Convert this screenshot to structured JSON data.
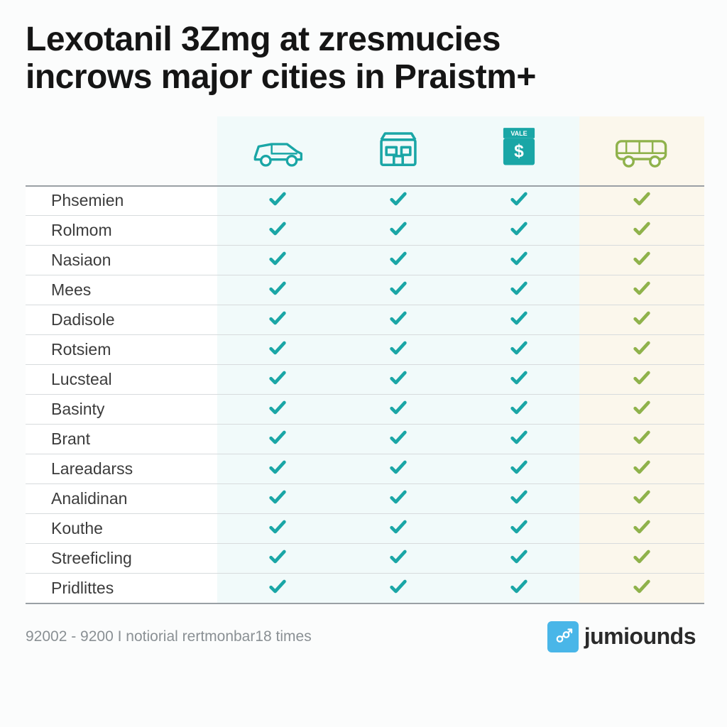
{
  "title_line1": "Lexotanil 3Zmg at zresmucies",
  "title_line2": "incrows major cities in Praistm+",
  "colors": {
    "teal": "#1aa6a6",
    "olive": "#8fb24b",
    "mint_bg": "#f1fafa",
    "cream_bg": "#fbf7ec",
    "rule": "#9aa0a5",
    "row_rule": "#d7dbdd",
    "footer_text": "#8a9094",
    "brand_badge": "#49b6e8"
  },
  "header_icons": [
    "car-icon",
    "store-icon",
    "price-tag-icon",
    "van-icon"
  ],
  "header_icon_colors": [
    "#1aa6a6",
    "#1aa6a6",
    "#1aa6a6",
    "#8fb24b"
  ],
  "price_tag_label": "VALE",
  "column_tints": [
    "mint",
    "mint",
    "mint",
    "cream"
  ],
  "check_colors": [
    "#1aa6a6",
    "#1aa6a6",
    "#1aa6a6",
    "#8fb24b"
  ],
  "rows": [
    {
      "name": "Phsemien",
      "checks": [
        true,
        true,
        true,
        true
      ]
    },
    {
      "name": "Rolmom",
      "checks": [
        true,
        true,
        true,
        true
      ]
    },
    {
      "name": "Nasiaon",
      "checks": [
        true,
        true,
        true,
        true
      ]
    },
    {
      "name": "Mees",
      "checks": [
        true,
        true,
        true,
        true
      ]
    },
    {
      "name": "Dadisole",
      "checks": [
        true,
        true,
        true,
        true
      ]
    },
    {
      "name": "Rotsiem",
      "checks": [
        true,
        true,
        true,
        true
      ]
    },
    {
      "name": "Lucsteal",
      "checks": [
        true,
        true,
        true,
        true
      ]
    },
    {
      "name": "Basinty",
      "checks": [
        true,
        true,
        true,
        true
      ]
    },
    {
      "name": "Brant",
      "checks": [
        true,
        true,
        true,
        true
      ]
    },
    {
      "name": "Lareadarss",
      "checks": [
        true,
        true,
        true,
        true
      ]
    },
    {
      "name": "Analidinan",
      "checks": [
        true,
        true,
        true,
        true
      ]
    },
    {
      "name": "Kouthe",
      "checks": [
        true,
        true,
        true,
        true
      ]
    },
    {
      "name": "Streeficling",
      "checks": [
        true,
        true,
        true,
        true
      ]
    },
    {
      "name": "Pridlittes",
      "checks": [
        true,
        true,
        true,
        true
      ]
    }
  ],
  "footer_text": "92002 - 9200 I notiorial rertmonbar18 times",
  "brand_text": "jumiounds"
}
